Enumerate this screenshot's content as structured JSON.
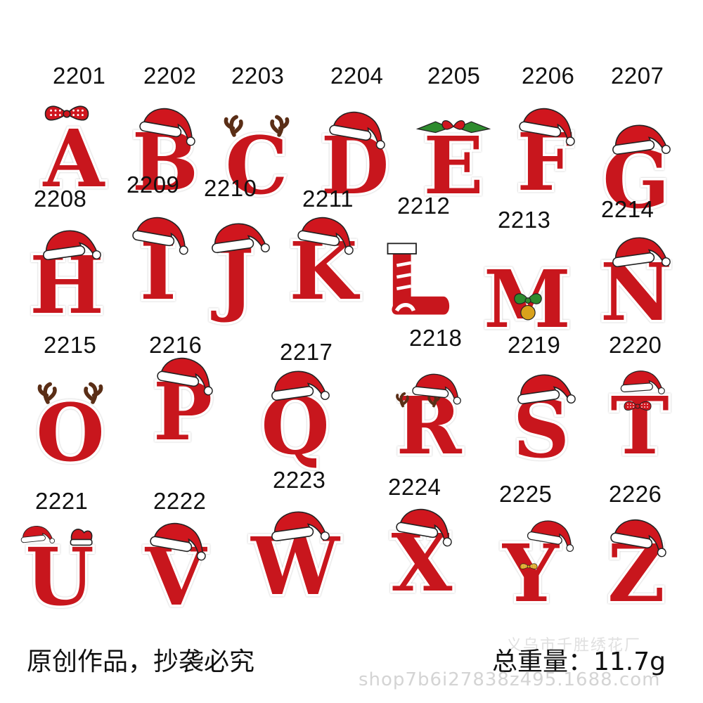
{
  "patches": [
    {
      "code": "2201",
      "letter": "A",
      "decor": "bow"
    },
    {
      "code": "2202",
      "letter": "B",
      "decor": "hat"
    },
    {
      "code": "2203",
      "letter": "C",
      "decor": "antlers"
    },
    {
      "code": "2204",
      "letter": "D",
      "decor": "hat"
    },
    {
      "code": "2205",
      "letter": "E",
      "decor": "holly"
    },
    {
      "code": "2206",
      "letter": "F",
      "decor": "hat"
    },
    {
      "code": "2207",
      "letter": "G",
      "decor": "hat"
    },
    {
      "code": "2208",
      "letter": "H",
      "decor": "hat"
    },
    {
      "code": "2209",
      "letter": "I",
      "decor": "hat"
    },
    {
      "code": "2210",
      "letter": "J",
      "decor": "hat"
    },
    {
      "code": "2211",
      "letter": "K",
      "decor": "hat"
    },
    {
      "code": "2212",
      "letter": "L",
      "decor": "stocking"
    },
    {
      "code": "2213",
      "letter": "M",
      "decor": "bell"
    },
    {
      "code": "2214",
      "letter": "N",
      "decor": "hat"
    },
    {
      "code": "2215",
      "letter": "O",
      "decor": "antlers"
    },
    {
      "code": "2216",
      "letter": "P",
      "decor": "hat"
    },
    {
      "code": "2217",
      "letter": "Q",
      "decor": "hat"
    },
    {
      "code": "2218",
      "letter": "R",
      "decor": "hat-antlers"
    },
    {
      "code": "2219",
      "letter": "S",
      "decor": "hat"
    },
    {
      "code": "2220",
      "letter": "T",
      "decor": "hat-bow"
    },
    {
      "code": "2221",
      "letter": "U",
      "decor": "hat-mitten"
    },
    {
      "code": "2222",
      "letter": "V",
      "decor": "hat"
    },
    {
      "code": "2223",
      "letter": "W",
      "decor": "hat"
    },
    {
      "code": "2224",
      "letter": "X",
      "decor": "hat"
    },
    {
      "code": "2225",
      "letter": "Y",
      "decor": "hat-bowtie"
    },
    {
      "code": "2226",
      "letter": "Z",
      "decor": "hat"
    }
  ],
  "footer": {
    "notice": "原创作品，抄袭必究",
    "weight": "总重量：11.7g",
    "watermark": "shop7b6i27838z495.1688.com",
    "watermark_top": "义乌市千胜绣花厂"
  },
  "colors": {
    "letter_red": "#c8161d",
    "letter_dark": "#a50f15",
    "letter_edge": "#ffffff",
    "hat_red": "#d0161e",
    "fur_white": "#ffffff",
    "antler_brown": "#5a2e16",
    "holly_green": "#2e8b2e",
    "bell_gold": "#d9a21b",
    "outline": "#222222"
  }
}
